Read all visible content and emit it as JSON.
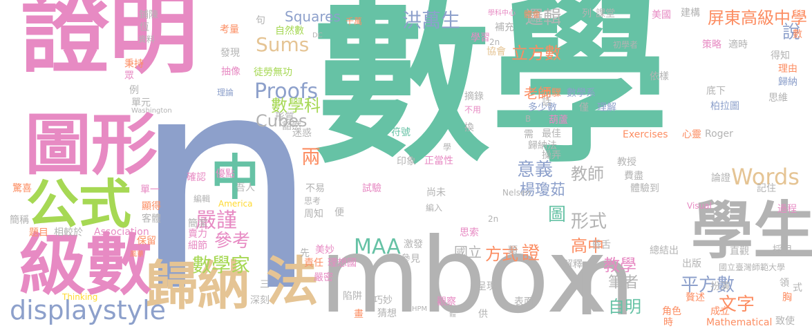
{
  "palette": {
    "teal": "#66c2a5",
    "pink": "#e78ac3",
    "blue": "#8da0cb",
    "tan": "#e5c494",
    "gray": "#b3b3b3",
    "lime": "#a6d854",
    "orange": "#fc8d62",
    "yellow": "#ffd92f"
  },
  "words": [
    {
      "text": "數學",
      "color": "teal"
    },
    {
      "text": "n",
      "color": "blue"
    },
    {
      "text": "證明",
      "color": "pink"
    },
    {
      "text": "mbox",
      "color": "gray"
    },
    {
      "text": "學生",
      "color": "gray"
    },
    {
      "text": "圖形",
      "color": "pink"
    },
    {
      "text": "級數",
      "color": "pink"
    },
    {
      "text": "n",
      "color": "gray"
    },
    {
      "text": "歸納",
      "color": "tan"
    },
    {
      "text": "公式",
      "color": "lime"
    },
    {
      "text": "法",
      "color": "tan"
    },
    {
      "text": "中",
      "color": "teal"
    },
    {
      "text": "displaystyle",
      "color": "blue"
    },
    {
      "text": "MAA",
      "color": "teal"
    },
    {
      "text": "Proofs",
      "color": "blue"
    },
    {
      "text": "洪萬生",
      "color": "blue"
    },
    {
      "text": "Sums",
      "color": "tan"
    },
    {
      "text": "立方數",
      "color": "orange"
    },
    {
      "text": "邏輯",
      "color": "gray"
    },
    {
      "text": "屏東高級中學",
      "color": "orange"
    },
    {
      "text": "說",
      "color": "blue"
    },
    {
      "text": "數學科",
      "color": "lime"
    },
    {
      "text": "Cubes",
      "color": "gray"
    },
    {
      "text": "嚴謹",
      "color": "pink"
    },
    {
      "text": "數學家",
      "color": "lime"
    },
    {
      "text": "參考",
      "color": "pink"
    },
    {
      "text": "兩",
      "color": "orange"
    },
    {
      "text": "意義",
      "color": "blue"
    },
    {
      "text": "教師",
      "color": "gray"
    },
    {
      "text": "Words",
      "color": "tan"
    },
    {
      "text": "形式",
      "color": "gray"
    },
    {
      "text": "高中",
      "color": "orange"
    },
    {
      "text": "教學",
      "color": "pink"
    },
    {
      "text": "方式",
      "color": "orange"
    },
    {
      "text": "國立",
      "color": "gray"
    },
    {
      "text": "平方數",
      "color": "blue"
    },
    {
      "text": "自明",
      "color": "teal"
    },
    {
      "text": "文字",
      "color": "orange"
    },
    {
      "text": "筆者",
      "color": "gray"
    },
    {
      "text": "楊瓊茹",
      "color": "blue"
    },
    {
      "text": "圖",
      "color": "teal"
    },
    {
      "text": "證",
      "color": "orange"
    },
    {
      "text": "老師",
      "color": "orange"
    },
    {
      "text": "Squares",
      "color": "blue"
    },
    {
      "text": "自然數",
      "color": "lime"
    },
    {
      "text": "徒勞無功",
      "color": "lime"
    },
    {
      "text": "考量",
      "color": "orange"
    },
    {
      "text": "發現",
      "color": "gray"
    },
    {
      "text": "抽像",
      "color": "pink"
    },
    {
      "text": "理論",
      "color": "blue"
    },
    {
      "text": "句",
      "color": "gray"
    },
    {
      "text": "千萬",
      "color": "orange"
    },
    {
      "text": "DC",
      "color": "gray"
    },
    {
      "text": "學科中心",
      "color": "pink"
    },
    {
      "text": "體會",
      "color": "orange"
    },
    {
      "text": "課堂",
      "color": "gray"
    },
    {
      "text": "列",
      "color": "gray"
    },
    {
      "text": "美國",
      "color": "pink"
    },
    {
      "text": "建構",
      "color": "gray"
    },
    {
      "text": "初學者",
      "color": "gray"
    },
    {
      "text": "策略",
      "color": "pink"
    },
    {
      "text": "適時",
      "color": "gray"
    },
    {
      "text": "數",
      "color": "orange"
    },
    {
      "text": "得知",
      "color": "gray"
    },
    {
      "text": "理由",
      "color": "orange"
    },
    {
      "text": "歸納",
      "color": "blue"
    },
    {
      "text": "思維",
      "color": "gray"
    },
    {
      "text": "柏拉圖",
      "color": "blue"
    },
    {
      "text": "理解",
      "color": "blue"
    },
    {
      "text": "數學系",
      "color": "blue"
    },
    {
      "text": "步驟",
      "color": "orange"
    },
    {
      "text": "依樣",
      "color": "gray"
    },
    {
      "text": "底下",
      "color": "gray"
    },
    {
      "text": "多少數",
      "color": "blue"
    },
    {
      "text": "僅",
      "color": "gray"
    },
    {
      "text": "不用",
      "color": "pink"
    },
    {
      "text": "摘錄",
      "color": "gray"
    },
    {
      "text": "話",
      "color": "gray"
    },
    {
      "text": "需",
      "color": "gray"
    },
    {
      "text": "最佳",
      "color": "gray"
    },
    {
      "text": "葫蘆",
      "color": "pink"
    },
    {
      "text": "B",
      "color": "gray"
    },
    {
      "text": "學習",
      "color": "pink"
    },
    {
      "text": "補充",
      "color": "gray"
    },
    {
      "text": "協會",
      "color": "tan"
    },
    {
      "text": "2n",
      "color": "gray"
    },
    {
      "text": "鋪陳",
      "color": "gray"
    },
    {
      "text": "恆",
      "color": "gray"
    },
    {
      "text": "資料",
      "color": "gray"
    },
    {
      "text": "秉持",
      "color": "orange"
    },
    {
      "text": "眾",
      "color": "pink"
    },
    {
      "text": "例",
      "color": "gray"
    },
    {
      "text": "單元",
      "color": "gray"
    },
    {
      "text": "Washington",
      "color": "gray"
    },
    {
      "text": "形質",
      "color": "gray"
    },
    {
      "text": "豁然",
      "color": "gray"
    },
    {
      "text": "迷惑",
      "color": "gray"
    },
    {
      "text": "符號",
      "color": "teal"
    },
    {
      "text": "換",
      "color": "gray"
    },
    {
      "text": "學",
      "color": "gray"
    },
    {
      "text": "正當性",
      "color": "pink"
    },
    {
      "text": "印象",
      "color": "gray"
    },
    {
      "text": "歸納法",
      "color": "gray"
    },
    {
      "text": "操弄",
      "color": "gray"
    },
    {
      "text": "Exercises",
      "color": "orange"
    },
    {
      "text": "心靈",
      "color": "orange"
    },
    {
      "text": "Roger",
      "color": "gray"
    },
    {
      "text": "教授",
      "color": "gray"
    },
    {
      "text": "費盡",
      "color": "gray"
    },
    {
      "text": "論證",
      "color": "gray"
    },
    {
      "text": "驚喜",
      "color": "orange"
    },
    {
      "text": "確認",
      "color": "pink"
    },
    {
      "text": "優點",
      "color": "pink"
    },
    {
      "text": "單一",
      "color": "pink"
    },
    {
      "text": "吾人",
      "color": "gray"
    },
    {
      "text": "不易",
      "color": "gray"
    },
    {
      "text": "試驗",
      "color": "pink"
    },
    {
      "text": "尚未",
      "color": "gray"
    },
    {
      "text": "Nelsen",
      "color": "gray"
    },
    {
      "text": "體驗到",
      "color": "gray"
    },
    {
      "text": "記住",
      "color": "gray"
    },
    {
      "text": "過程",
      "color": "pink"
    },
    {
      "text": "Visual",
      "color": "pink"
    },
    {
      "text": "顯得",
      "color": "orange"
    },
    {
      "text": "客體",
      "color": "gray"
    },
    {
      "text": "America",
      "color": "yellow"
    },
    {
      "text": "編輯",
      "color": "gray"
    },
    {
      "text": "思考",
      "color": "gray"
    },
    {
      "text": "編入",
      "color": "gray"
    },
    {
      "text": "周知",
      "color": "gray"
    },
    {
      "text": "便",
      "color": "gray"
    },
    {
      "text": "簡稱",
      "color": "gray"
    },
    {
      "text": "簡潔",
      "color": "gray"
    },
    {
      "text": "賣力",
      "color": "pink"
    },
    {
      "text": "細節",
      "color": "pink"
    },
    {
      "text": "相較於",
      "color": "gray"
    },
    {
      "text": "題目",
      "color": "orange"
    },
    {
      "text": "Association",
      "color": "pink"
    },
    {
      "text": "保留",
      "color": "orange"
    },
    {
      "text": "風華",
      "color": "orange"
    },
    {
      "text": "思索",
      "color": "pink"
    },
    {
      "text": "2n",
      "color": "gray"
    },
    {
      "text": "激發",
      "color": "gray"
    },
    {
      "text": "參見",
      "color": "gray"
    },
    {
      "text": "類",
      "color": "gray"
    },
    {
      "text": "昏舌",
      "color": "gray"
    },
    {
      "text": "總結出",
      "color": "gray"
    },
    {
      "text": "直觀",
      "color": "gray"
    },
    {
      "text": "採用",
      "color": "gray"
    },
    {
      "text": "出版",
      "color": "gray"
    },
    {
      "text": "國立臺灣師範大學",
      "color": "gray"
    },
    {
      "text": "美妙",
      "color": "pink"
    },
    {
      "text": "理想國",
      "color": "pink"
    },
    {
      "text": "先",
      "color": "gray"
    },
    {
      "text": "責任",
      "color": "orange"
    },
    {
      "text": "嚴密",
      "color": "pink"
    },
    {
      "text": "解釋",
      "color": "gray"
    },
    {
      "text": "扮演",
      "color": "gray"
    },
    {
      "text": "領",
      "color": "gray"
    },
    {
      "text": "式",
      "color": "gray"
    },
    {
      "text": "胸",
      "color": "orange"
    },
    {
      "text": "角色",
      "color": "orange"
    },
    {
      "text": "成立",
      "color": "orange"
    },
    {
      "text": "時",
      "color": "orange"
    },
    {
      "text": "致使",
      "color": "gray"
    },
    {
      "text": "Mathematical",
      "color": "orange"
    },
    {
      "text": "贅述",
      "color": "orange"
    },
    {
      "text": "三",
      "color": "gray"
    },
    {
      "text": "深刻",
      "color": "gray"
    },
    {
      "text": "陷阱",
      "color": "gray"
    },
    {
      "text": "巧妙",
      "color": "gray"
    },
    {
      "text": "猜想",
      "color": "gray"
    },
    {
      "text": "畫",
      "color": "orange"
    },
    {
      "text": "HPM",
      "color": "gray"
    },
    {
      "text": "體",
      "color": "gray"
    },
    {
      "text": "呈現",
      "color": "gray"
    },
    {
      "text": "觀察",
      "color": "pink"
    },
    {
      "text": "供",
      "color": "gray"
    },
    {
      "text": "表面",
      "color": "gray"
    },
    {
      "text": "Thinking",
      "color": "yellow"
    }
  ]
}
